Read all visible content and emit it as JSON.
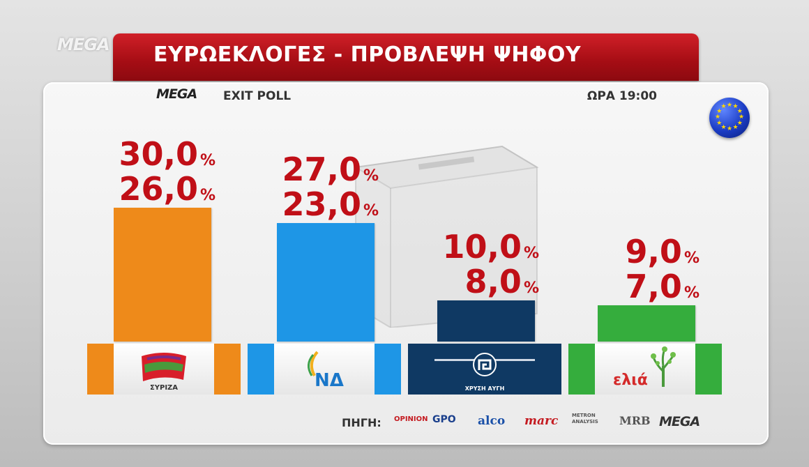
{
  "broadcast": {
    "channel_logo": "MEGA",
    "title": "ΕΥΡΩΕΚΛΟΓΕΣ - ΠΡΟΒΛΕΨΗ ΨΗΦΟΥ",
    "sub_logo": "MEGA",
    "sub_label": "EXIT POLL",
    "time": "ΩΡΑ 19:00"
  },
  "sources": {
    "label": "ΠΗΓΗ:",
    "items": [
      "OPINION",
      "GPO",
      "alco",
      "marc",
      "METRON ANALYSIS",
      "MRB",
      "MEGA"
    ]
  },
  "chart_data": {
    "type": "bar",
    "title": "ΕΥΡΩΕΚΛΟΓΕΣ - ΠΡΟΒΛΕΨΗ ΨΗΦΟΥ",
    "xlabel": "",
    "ylabel": "",
    "categories": [
      "ΣΥΡΙΖΑ",
      "ΝΔ",
      "ΧΡΥΣΗ ΑΥΓΗ",
      "ελιά"
    ],
    "series": [
      {
        "values": [
          30.0,
          27.0,
          10.0,
          9.0
        ]
      },
      {
        "values": [
          26.0,
          23.0,
          8.0,
          7.0
        ]
      }
    ],
    "value_labels_high": [
      "30,0",
      "27,0",
      "10,0",
      "9,0"
    ],
    "value_labels_low": [
      "26,0",
      "23,0",
      "8,0",
      "7,0"
    ],
    "percent_sign": "%",
    "colors": [
      "#ee8a1a",
      "#1e96e6",
      "#0f3963",
      "#35ad3d"
    ],
    "ylim": [
      0,
      30
    ],
    "grid": false,
    "legend": "none"
  }
}
